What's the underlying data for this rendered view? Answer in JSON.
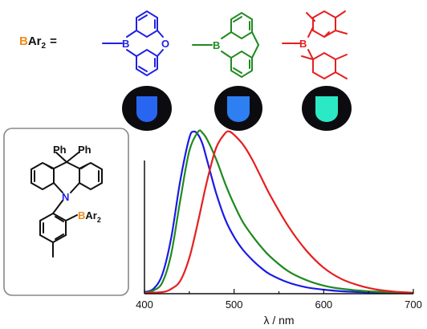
{
  "figure": {
    "definition_label_b": "B",
    "definition_label_rest": "Ar",
    "definition_subscript": "2",
    "definition_equals": "=",
    "substituents": [
      {
        "boron": "B",
        "bridge": "O",
        "color": "#1f1fe6"
      },
      {
        "boron": "B",
        "bridge": "",
        "color": "#1f8a1f"
      },
      {
        "boron": "B",
        "bridge": "",
        "color": "#e61f1f"
      }
    ],
    "emission_glows": [
      {
        "color": "#2a6cff"
      },
      {
        "color": "#2f86ff"
      },
      {
        "color": "#2ef5d0"
      }
    ],
    "molecule": {
      "ph1": "Ph",
      "ph2": "Ph",
      "nitrogen": "N",
      "boron": "B",
      "ar": "Ar",
      "subscript": "2"
    }
  },
  "chart_data": {
    "type": "line",
    "xlabel": "λ / nm",
    "xlim": [
      400,
      700
    ],
    "ylim": [
      0,
      1.02
    ],
    "x_ticks": [
      400,
      500,
      600,
      700
    ],
    "series": [
      {
        "color": "#1a1ae6",
        "x": [
          400,
          410,
          420,
          430,
          440,
          450,
          455,
          460,
          465,
          470,
          480,
          490,
          500,
          510,
          520,
          530,
          540,
          560,
          580,
          600,
          620,
          650,
          680,
          700
        ],
        "y": [
          0.01,
          0.03,
          0.12,
          0.35,
          0.7,
          0.96,
          1.0,
          0.98,
          0.92,
          0.82,
          0.62,
          0.46,
          0.35,
          0.27,
          0.21,
          0.16,
          0.12,
          0.07,
          0.04,
          0.025,
          0.015,
          0.008,
          0.004,
          0.003
        ]
      },
      {
        "color": "#1f8a1f",
        "x": [
          400,
          410,
          420,
          430,
          440,
          450,
          460,
          465,
          470,
          480,
          490,
          500,
          510,
          520,
          530,
          540,
          560,
          580,
          600,
          620,
          650,
          680,
          700
        ],
        "y": [
          0.005,
          0.02,
          0.07,
          0.25,
          0.58,
          0.88,
          1.0,
          0.99,
          0.95,
          0.83,
          0.68,
          0.55,
          0.44,
          0.36,
          0.29,
          0.23,
          0.14,
          0.085,
          0.05,
          0.03,
          0.015,
          0.008,
          0.005
        ]
      },
      {
        "color": "#e61f1f",
        "x": [
          400,
          420,
          430,
          440,
          450,
          460,
          470,
          480,
          490,
          495,
          500,
          510,
          520,
          530,
          540,
          560,
          580,
          600,
          620,
          640,
          660,
          680,
          700
        ],
        "y": [
          0.005,
          0.01,
          0.03,
          0.08,
          0.22,
          0.45,
          0.7,
          0.9,
          0.99,
          1.0,
          0.98,
          0.92,
          0.83,
          0.72,
          0.61,
          0.42,
          0.27,
          0.16,
          0.09,
          0.05,
          0.025,
          0.012,
          0.006
        ]
      }
    ]
  }
}
